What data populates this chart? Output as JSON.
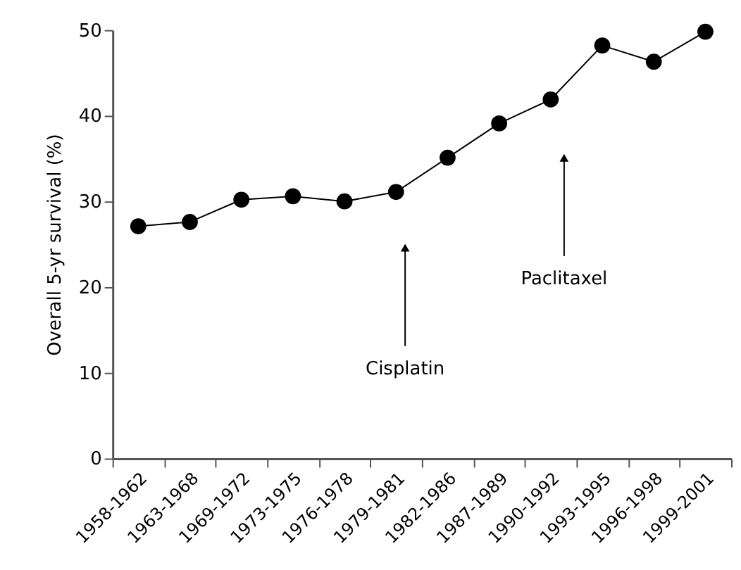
{
  "chart_data": {
    "type": "line",
    "ylabel": "Overall 5-yr survival (%)",
    "categories": [
      "1958-1962",
      "1963-1968",
      "1969-1972",
      "1973-1975",
      "1976-1978",
      "1979-1981",
      "1982-1986",
      "1987-1989",
      "1990-1992",
      "1993-1995",
      "1996-1998",
      "1999-2001"
    ],
    "series": [
      {
        "color": "#000000",
        "values": [
          27.1,
          27.6,
          30.2,
          30.6,
          30.0,
          31.1,
          35.1,
          39.1,
          41.9,
          48.2,
          46.3,
          49.8
        ]
      }
    ],
    "ylim": [
      0,
      50
    ],
    "yticks": [
      0,
      10,
      20,
      30,
      40,
      50
    ],
    "grid": false,
    "marker": "circle",
    "line_style": "solid",
    "annotations": [
      "Cisplatin",
      "Paclitaxel"
    ]
  }
}
